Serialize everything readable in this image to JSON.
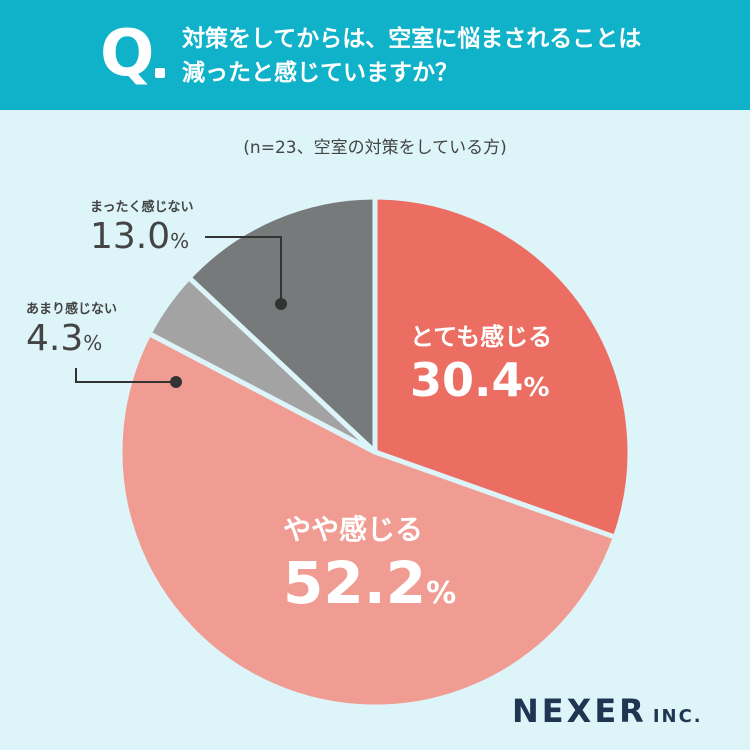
{
  "header": {
    "q_label": "Q",
    "question_line1": "対策をしてからは、空室に悩まされることは",
    "question_line2": "減ったと感じていますか？"
  },
  "subtitle": "(n=23、空室の対策をしている方)",
  "colors": {
    "header_bg": "#0fb2c8",
    "page_bg": "#ddf5f9",
    "totemo": "#ec6e62",
    "yaya": "#f19c93",
    "amari": "#a3a3a3",
    "mattaku": "#777a7a"
  },
  "chart_data": {
    "type": "pie",
    "unit": "%",
    "start": "12 o'clock, clockwise",
    "slices": [
      {
        "label": "とても感じる",
        "value": 30.4,
        "display": "30.4",
        "color": "#ec6e62"
      },
      {
        "label": "やや感じる",
        "value": 52.2,
        "display": "52.2",
        "color": "#f19c93"
      },
      {
        "label": "あまり感じない",
        "value": 4.3,
        "display": "4.3",
        "color": "#a3a3a3"
      },
      {
        "label": "まったく感じない",
        "value": 13.0,
        "display": "13.0",
        "color": "#777a7a"
      }
    ]
  },
  "logo": {
    "name": "NEXER",
    "suffix": "INC."
  }
}
